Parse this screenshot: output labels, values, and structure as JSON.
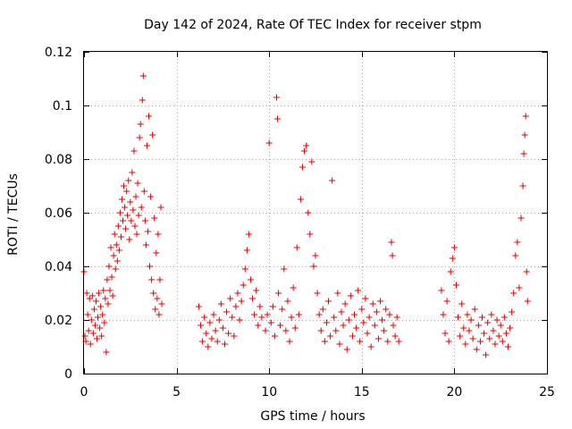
{
  "chart_data": {
    "type": "scatter",
    "title": "Day 142 of 2024, Rate Of TEC Index for receiver stpm",
    "xlabel": "GPS time / hours",
    "ylabel": "ROTI / TECUs",
    "xlim": [
      0,
      25
    ],
    "ylim": [
      0,
      0.12
    ],
    "xticks": [
      0,
      5,
      10,
      15,
      20,
      25
    ],
    "xtick_labels": [
      "0",
      "5",
      "10",
      "15",
      "20",
      "25"
    ],
    "yticks": [
      0,
      0.02,
      0.04,
      0.06,
      0.08,
      0.1,
      0.12
    ],
    "ytick_labels": [
      "0",
      "0.02",
      "0.04",
      "0.06",
      "0.08",
      "0.1",
      "0.12"
    ],
    "grid": true,
    "marker": "plus",
    "color": "#e00000",
    "series": [
      {
        "name": "ROTI",
        "points": [
          [
            0.0,
            0.038
          ],
          [
            0.05,
            0.014
          ],
          [
            0.1,
            0.012
          ],
          [
            0.15,
            0.03
          ],
          [
            0.2,
            0.022
          ],
          [
            0.25,
            0.016
          ],
          [
            0.3,
            0.028
          ],
          [
            0.35,
            0.011
          ],
          [
            0.4,
            0.02
          ],
          [
            0.45,
            0.029
          ],
          [
            0.5,
            0.015
          ],
          [
            0.55,
            0.024
          ],
          [
            0.6,
            0.018
          ],
          [
            0.65,
            0.027
          ],
          [
            0.7,
            0.013
          ],
          [
            0.75,
            0.021
          ],
          [
            0.8,
            0.03
          ],
          [
            0.85,
            0.017
          ],
          [
            0.9,
            0.025
          ],
          [
            0.95,
            0.014
          ],
          [
            1.0,
            0.022
          ],
          [
            1.05,
            0.031
          ],
          [
            1.1,
            0.019
          ],
          [
            1.15,
            0.028
          ],
          [
            1.2,
            0.008
          ],
          [
            1.25,
            0.035
          ],
          [
            1.3,
            0.026
          ],
          [
            1.35,
            0.04
          ],
          [
            1.4,
            0.031
          ],
          [
            1.45,
            0.047
          ],
          [
            1.5,
            0.036
          ],
          [
            1.55,
            0.029
          ],
          [
            1.6,
            0.044
          ],
          [
            1.65,
            0.052
          ],
          [
            1.7,
            0.039
          ],
          [
            1.75,
            0.048
          ],
          [
            1.8,
            0.042
          ],
          [
            1.85,
            0.055
          ],
          [
            1.9,
            0.046
          ],
          [
            1.95,
            0.06
          ],
          [
            2.0,
            0.051
          ],
          [
            2.05,
            0.065
          ],
          [
            2.1,
            0.057
          ],
          [
            2.15,
            0.07
          ],
          [
            2.2,
            0.062
          ],
          [
            2.25,
            0.054
          ],
          [
            2.3,
            0.068
          ],
          [
            2.35,
            0.059
          ],
          [
            2.4,
            0.072
          ],
          [
            2.45,
            0.05
          ],
          [
            2.5,
            0.064
          ],
          [
            2.55,
            0.057
          ],
          [
            2.6,
            0.075
          ],
          [
            2.65,
            0.061
          ],
          [
            2.7,
            0.083
          ],
          [
            2.75,
            0.055
          ],
          [
            2.8,
            0.066
          ],
          [
            2.85,
            0.052
          ],
          [
            2.9,
            0.071
          ],
          [
            2.95,
            0.059
          ],
          [
            3.0,
            0.088
          ],
          [
            3.05,
            0.093
          ],
          [
            3.1,
            0.062
          ],
          [
            3.15,
            0.102
          ],
          [
            3.2,
            0.111
          ],
          [
            3.25,
            0.068
          ],
          [
            3.3,
            0.057
          ],
          [
            3.35,
            0.048
          ],
          [
            3.4,
            0.085
          ],
          [
            3.45,
            0.053
          ],
          [
            3.5,
            0.096
          ],
          [
            3.55,
            0.04
          ],
          [
            3.6,
            0.066
          ],
          [
            3.65,
            0.035
          ],
          [
            3.7,
            0.089
          ],
          [
            3.75,
            0.03
          ],
          [
            3.8,
            0.058
          ],
          [
            3.85,
            0.024
          ],
          [
            3.9,
            0.045
          ],
          [
            3.95,
            0.028
          ],
          [
            4.0,
            0.052
          ],
          [
            4.05,
            0.022
          ],
          [
            4.1,
            0.035
          ],
          [
            4.15,
            0.062
          ],
          [
            4.2,
            0.026
          ],
          [
            6.2,
            0.025
          ],
          [
            6.3,
            0.018
          ],
          [
            6.4,
            0.012
          ],
          [
            6.5,
            0.021
          ],
          [
            6.6,
            0.015
          ],
          [
            6.7,
            0.01
          ],
          [
            6.8,
            0.019
          ],
          [
            6.9,
            0.013
          ],
          [
            7.0,
            0.022
          ],
          [
            7.1,
            0.016
          ],
          [
            7.2,
            0.012
          ],
          [
            7.3,
            0.02
          ],
          [
            7.4,
            0.026
          ],
          [
            7.5,
            0.017
          ],
          [
            7.6,
            0.011
          ],
          [
            7.7,
            0.023
          ],
          [
            7.8,
            0.015
          ],
          [
            7.9,
            0.028
          ],
          [
            8.0,
            0.021
          ],
          [
            8.1,
            0.014
          ],
          [
            8.2,
            0.025
          ],
          [
            8.3,
            0.03
          ],
          [
            8.4,
            0.02
          ],
          [
            8.5,
            0.027
          ],
          [
            8.6,
            0.033
          ],
          [
            8.7,
            0.039
          ],
          [
            8.8,
            0.046
          ],
          [
            8.9,
            0.052
          ],
          [
            9.0,
            0.035
          ],
          [
            9.1,
            0.028
          ],
          [
            9.2,
            0.022
          ],
          [
            9.3,
            0.031
          ],
          [
            9.4,
            0.018
          ],
          [
            9.5,
            0.025
          ],
          [
            9.6,
            0.021
          ],
          [
            9.8,
            0.016
          ],
          [
            9.9,
            0.022
          ],
          [
            10.0,
            0.086
          ],
          [
            10.1,
            0.019
          ],
          [
            10.2,
            0.025
          ],
          [
            10.3,
            0.014
          ],
          [
            10.4,
            0.103
          ],
          [
            10.45,
            0.095
          ],
          [
            10.5,
            0.03
          ],
          [
            10.6,
            0.018
          ],
          [
            10.7,
            0.024
          ],
          [
            10.8,
            0.039
          ],
          [
            10.9,
            0.016
          ],
          [
            11.0,
            0.027
          ],
          [
            11.1,
            0.012
          ],
          [
            11.2,
            0.021
          ],
          [
            11.3,
            0.032
          ],
          [
            11.4,
            0.017
          ],
          [
            11.5,
            0.047
          ],
          [
            11.6,
            0.022
          ],
          [
            11.7,
            0.065
          ],
          [
            11.8,
            0.077
          ],
          [
            11.9,
            0.083
          ],
          [
            12.0,
            0.085
          ],
          [
            12.1,
            0.06
          ],
          [
            12.2,
            0.052
          ],
          [
            12.3,
            0.079
          ],
          [
            12.4,
            0.04
          ],
          [
            12.5,
            0.044
          ],
          [
            12.6,
            0.03
          ],
          [
            12.7,
            0.022
          ],
          [
            12.8,
            0.016
          ],
          [
            12.9,
            0.024
          ],
          [
            13.0,
            0.012
          ],
          [
            13.1,
            0.019
          ],
          [
            13.2,
            0.027
          ],
          [
            13.3,
            0.014
          ],
          [
            13.4,
            0.072
          ],
          [
            13.5,
            0.021
          ],
          [
            13.6,
            0.016
          ],
          [
            13.7,
            0.03
          ],
          [
            13.8,
            0.011
          ],
          [
            13.9,
            0.023
          ],
          [
            14.0,
            0.018
          ],
          [
            14.1,
            0.026
          ],
          [
            14.2,
            0.009
          ],
          [
            14.3,
            0.02
          ],
          [
            14.4,
            0.029
          ],
          [
            14.5,
            0.014
          ],
          [
            14.6,
            0.022
          ],
          [
            14.7,
            0.017
          ],
          [
            14.8,
            0.031
          ],
          [
            14.9,
            0.012
          ],
          [
            15.0,
            0.024
          ],
          [
            15.1,
            0.019
          ],
          [
            15.2,
            0.028
          ],
          [
            15.3,
            0.015
          ],
          [
            15.4,
            0.021
          ],
          [
            15.5,
            0.01
          ],
          [
            15.6,
            0.026
          ],
          [
            15.7,
            0.018
          ],
          [
            15.8,
            0.023
          ],
          [
            15.9,
            0.013
          ],
          [
            16.0,
            0.027
          ],
          [
            16.1,
            0.02
          ],
          [
            16.2,
            0.016
          ],
          [
            16.3,
            0.024
          ],
          [
            16.4,
            0.012
          ],
          [
            16.5,
            0.022
          ],
          [
            16.6,
            0.049
          ],
          [
            16.65,
            0.044
          ],
          [
            16.7,
            0.018
          ],
          [
            16.8,
            0.014
          ],
          [
            16.9,
            0.021
          ],
          [
            17.0,
            0.012
          ],
          [
            19.3,
            0.031
          ],
          [
            19.4,
            0.022
          ],
          [
            19.5,
            0.015
          ],
          [
            19.6,
            0.027
          ],
          [
            19.7,
            0.012
          ],
          [
            19.8,
            0.038
          ],
          [
            19.9,
            0.043
          ],
          [
            20.0,
            0.047
          ],
          [
            20.1,
            0.033
          ],
          [
            20.2,
            0.021
          ],
          [
            20.3,
            0.014
          ],
          [
            20.4,
            0.026
          ],
          [
            20.5,
            0.017
          ],
          [
            20.6,
            0.011
          ],
          [
            20.7,
            0.022
          ],
          [
            20.8,
            0.016
          ],
          [
            20.9,
            0.02
          ],
          [
            21.0,
            0.013
          ],
          [
            21.1,
            0.024
          ],
          [
            21.2,
            0.009
          ],
          [
            21.3,
            0.018
          ],
          [
            21.4,
            0.012
          ],
          [
            21.5,
            0.021
          ],
          [
            21.6,
            0.015
          ],
          [
            21.7,
            0.007
          ],
          [
            21.8,
            0.019
          ],
          [
            21.9,
            0.013
          ],
          [
            22.0,
            0.022
          ],
          [
            22.1,
            0.016
          ],
          [
            22.2,
            0.011
          ],
          [
            22.3,
            0.02
          ],
          [
            22.4,
            0.014
          ],
          [
            22.5,
            0.018
          ],
          [
            22.6,
            0.012
          ],
          [
            22.7,
            0.021
          ],
          [
            22.8,
            0.015
          ],
          [
            22.9,
            0.01
          ],
          [
            23.0,
            0.017
          ],
          [
            23.1,
            0.023
          ],
          [
            23.2,
            0.03
          ],
          [
            23.3,
            0.044
          ],
          [
            23.4,
            0.049
          ],
          [
            23.5,
            0.032
          ],
          [
            23.6,
            0.058
          ],
          [
            23.7,
            0.07
          ],
          [
            23.75,
            0.082
          ],
          [
            23.8,
            0.089
          ],
          [
            23.85,
            0.096
          ],
          [
            23.9,
            0.038
          ],
          [
            23.95,
            0.027
          ]
        ]
      }
    ]
  }
}
